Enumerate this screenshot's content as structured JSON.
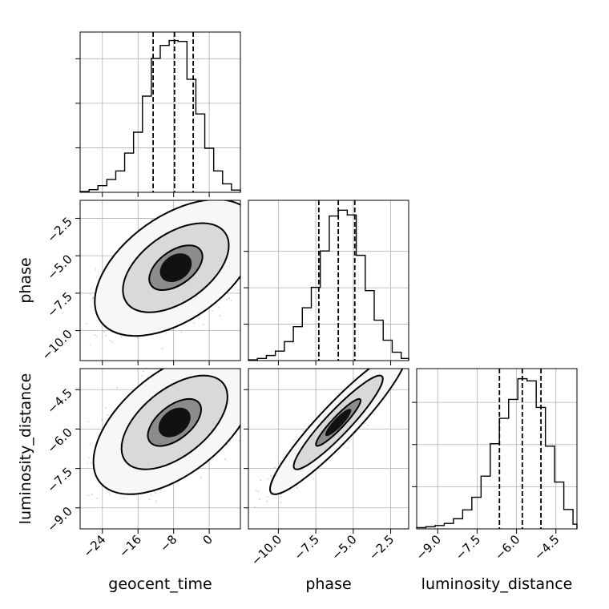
{
  "chart_data": {
    "type": "corner",
    "title": "",
    "parameters": [
      "geocent_time",
      "phase",
      "luminosity_distance"
    ],
    "grid": true,
    "quantile_lines": "dashed",
    "panels": [
      {
        "id": "hist-geocent_time",
        "kind": "histogram",
        "row": 0,
        "col": 0,
        "param": "geocent_time",
        "xlim": [
          -29,
          7
        ],
        "bin_edges": [
          -29,
          -27,
          -25,
          -23,
          -21,
          -19,
          -17,
          -15,
          -13,
          -11,
          -9,
          -7,
          -5,
          -3,
          -1,
          1,
          3,
          5,
          7
        ],
        "counts": [
          0.2,
          0.6,
          1.5,
          2.9,
          4.8,
          8.8,
          13.5,
          21.6,
          30.1,
          33.0,
          34.1,
          33.9,
          25.4,
          17.6,
          9.9,
          4.8,
          1.9,
          0.5
        ],
        "ylim": [
          0,
          36
        ],
        "quantiles": [
          -12.6,
          -7.8,
          -3.6
        ],
        "yticks": [
          10,
          20,
          30
        ]
      },
      {
        "id": "hist-phase",
        "kind": "histogram",
        "row": 1,
        "col": 1,
        "param": "phase",
        "xlim": [
          -12,
          -1.3
        ],
        "bin_edges": [
          -12,
          -11.4,
          -10.8,
          -10.2,
          -9.6,
          -9.0,
          -8.4,
          -7.8,
          -7.2,
          -6.6,
          -6.0,
          -5.4,
          -4.8,
          -4.2,
          -3.6,
          -3.0,
          -2.4,
          -1.8,
          -1.3
        ],
        "counts": [
          0.2,
          0.6,
          1.4,
          2.6,
          5.2,
          9.3,
          14.5,
          20.1,
          30.1,
          39.7,
          41.3,
          40.0,
          28.9,
          19.2,
          11.1,
          5.6,
          2.3,
          0.6
        ],
        "ylim": [
          0,
          44
        ],
        "quantiles": [
          -7.3,
          -6.0,
          -4.9
        ],
        "yticks": [
          10,
          20,
          30
        ]
      },
      {
        "id": "hist-luminosity_distance",
        "kind": "histogram",
        "row": 2,
        "col": 2,
        "param": "luminosity_distance",
        "xlim": [
          -9.8,
          -3.7
        ],
        "bin_edges": [
          -9.8,
          -9.45,
          -9.1,
          -8.75,
          -8.4,
          -8.05,
          -7.7,
          -7.35,
          -7.0,
          -6.65,
          -6.3,
          -5.95,
          -5.6,
          -5.25,
          -4.9,
          -4.55,
          -4.2,
          -3.85,
          -3.7
        ],
        "counts": [
          0.3,
          0.5,
          0.8,
          1.3,
          2.4,
          4.5,
          7.5,
          12.5,
          20.2,
          26.2,
          30.7,
          35.6,
          35.1,
          28.8,
          19.6,
          11.1,
          4.6,
          1.1
        ],
        "ylim": [
          0,
          38
        ],
        "quantiles": [
          -6.65,
          -5.78,
          -5.07
        ],
        "yticks": [
          10,
          20,
          30
        ]
      },
      {
        "id": "density-geocent_time-phase",
        "kind": "2d-density",
        "row": 1,
        "col": 0,
        "x_param": "geocent_time",
        "y_param": "phase",
        "xlim": [
          -29,
          7
        ],
        "ylim": [
          -12,
          -1.3
        ],
        "mean": [
          -7.5,
          -5.8
        ],
        "sd": [
          6.0,
          1.5
        ],
        "corr": 0.5,
        "levels": [
          0.39,
          0.86,
          0.99
        ],
        "n_samples": 4500
      },
      {
        "id": "density-geocent_time-luminosity_distance",
        "kind": "2d-density",
        "row": 2,
        "col": 0,
        "x_param": "geocent_time",
        "y_param": "luminosity_distance",
        "xlim": [
          -29,
          7
        ],
        "ylim": [
          -9.8,
          -3.7
        ],
        "mean": [
          -7.8,
          -5.75
        ],
        "sd": [
          6.0,
          0.9
        ],
        "corr": 0.55,
        "levels": [
          0.39,
          0.86,
          0.99
        ],
        "n_samples": 4500
      },
      {
        "id": "density-phase-luminosity_distance",
        "kind": "2d-density",
        "row": 2,
        "col": 1,
        "x_param": "phase",
        "y_param": "luminosity_distance",
        "xlim": [
          -12,
          -1.3
        ],
        "ylim": [
          -9.8,
          -3.7
        ],
        "mean": [
          -6.0,
          -5.75
        ],
        "sd": [
          1.5,
          0.9
        ],
        "corr": 0.93,
        "levels": [
          0.39,
          0.86,
          0.99
        ],
        "n_samples": 4500
      }
    ],
    "axes": {
      "geocent_time": {
        "ticks": [
          -24,
          -16,
          -8,
          0
        ],
        "tick_labels": [
          "−24",
          "−16",
          "−8",
          "0"
        ]
      },
      "phase": {
        "ticks": [
          -10.0,
          -7.5,
          -5.0,
          -2.5
        ],
        "tick_labels": [
          "−10.0",
          "−7.5",
          "−5.0",
          "−2.5"
        ]
      },
      "luminosity_distance": {
        "ticks": [
          -9.0,
          -7.5,
          -6.0,
          -4.5
        ],
        "tick_labels": [
          "−9.0",
          "−7.5",
          "−6.0",
          "−4.5"
        ]
      }
    },
    "axis_labels": {
      "x": [
        "geocent_time",
        "phase",
        "luminosity_distance"
      ],
      "y": [
        "",
        "phase",
        "luminosity_distance"
      ]
    },
    "colors": {
      "line": "#000000",
      "grid": "#b0b0b0",
      "samples": "#9a9a9a",
      "background": "#ffffff"
    }
  }
}
